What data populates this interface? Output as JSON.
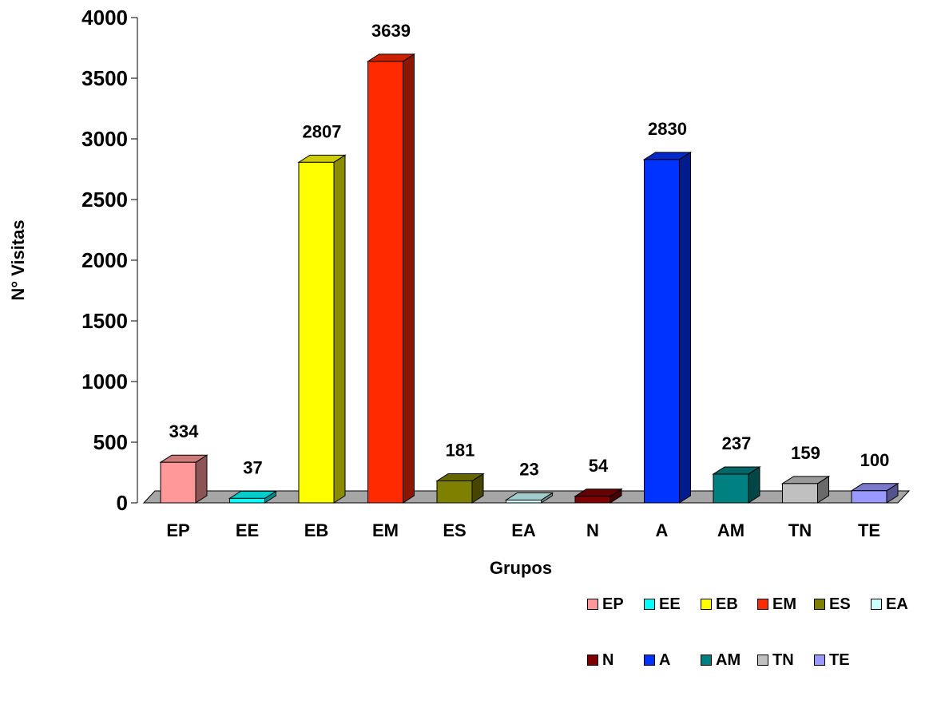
{
  "chart_data": {
    "type": "bar",
    "ylabel": "N° Visitas",
    "xlabel": "Grupos",
    "ylim": [
      0,
      4000
    ],
    "yticks": [
      "0",
      "500",
      "1000",
      "1500",
      "2000",
      "2500",
      "3000",
      "3500",
      "4000"
    ],
    "categories": [
      "EP",
      "EE",
      "EB",
      "EM",
      "ES",
      "EA",
      "N",
      "A",
      "AM",
      "TN",
      "TE"
    ],
    "values": [
      334,
      37,
      2807,
      3639,
      181,
      23,
      54,
      2830,
      237,
      159,
      100
    ],
    "value_labels": [
      "334",
      "37",
      "2807",
      "3639",
      "181",
      "23",
      "54",
      "2830",
      "237",
      "159",
      "100"
    ],
    "colors": [
      "#ff9999",
      "#00ffff",
      "#ffff00",
      "#ff2a00",
      "#808000",
      "#ccffff",
      "#800000",
      "#0033ff",
      "#008080",
      "#c0c0c0",
      "#9999ff"
    ],
    "legend": {
      "position": "bottom-right",
      "rows": [
        [
          "EP",
          "EE",
          "EB",
          "EM",
          "ES",
          "EA"
        ],
        [
          "N",
          "A",
          "AM",
          "TN",
          "TE"
        ]
      ]
    },
    "grid": false,
    "style": "3d-column"
  }
}
